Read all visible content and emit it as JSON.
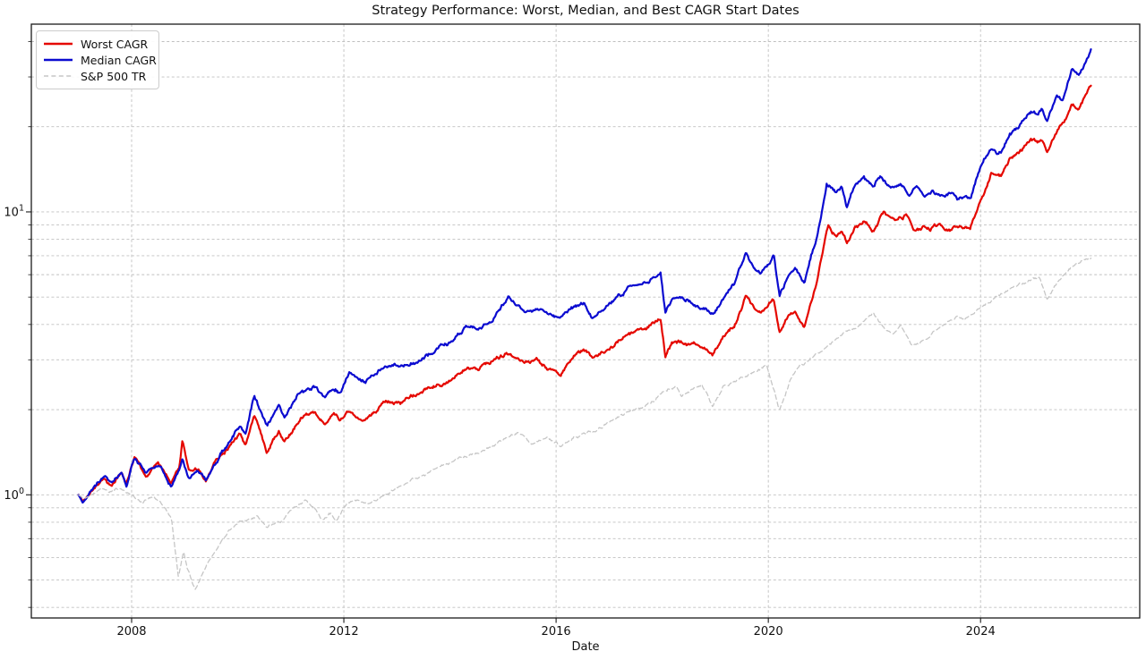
{
  "title": "Strategy Performance: Worst, Median, and Best CAGR Start Dates",
  "chart_data": {
    "type": "line",
    "title": "Strategy Performance: Worst, Median, and Best CAGR Start Dates",
    "xlabel": "Date",
    "ylabel": "",
    "yscale": "log",
    "grid": true,
    "legend_position": "upper-left",
    "x_range": [
      2006.11,
      2027.0
    ],
    "y_range": [
      0.367,
      46.1
    ],
    "x_data_range": [
      2007.0,
      2026.08
    ],
    "x_ticks": [
      2008,
      2012,
      2016,
      2020,
      2024
    ],
    "x_tick_labels": [
      "2008",
      "2012",
      "2016",
      "2020",
      "2024"
    ],
    "y_major_ticks": [
      1,
      10
    ],
    "y_major_tick_exponents": [
      0,
      1
    ],
    "y_minor_ticks": [
      0.4,
      0.5,
      0.6,
      0.7,
      0.8,
      0.9,
      2,
      3,
      4,
      5,
      6,
      7,
      8,
      9,
      20,
      30,
      40
    ],
    "colors": {
      "grid": "#c0c0c0",
      "spine": "#1a1a1a",
      "text": "#111111"
    },
    "series": [
      {
        "name": "Worst CAGR",
        "color": "#e50800",
        "style": "solid",
        "line_width": 2.2,
        "anchors": [
          [
            2007.0,
            1.0
          ],
          [
            2007.08,
            0.95
          ],
          [
            2007.3,
            1.08
          ],
          [
            2007.5,
            1.16
          ],
          [
            2007.62,
            1.07
          ],
          [
            2007.81,
            1.21
          ],
          [
            2007.9,
            1.11
          ],
          [
            2008.05,
            1.36
          ],
          [
            2008.27,
            1.18
          ],
          [
            2008.5,
            1.29
          ],
          [
            2008.74,
            1.11
          ],
          [
            2008.9,
            1.25
          ],
          [
            2008.96,
            1.57
          ],
          [
            2009.08,
            1.21
          ],
          [
            2009.25,
            1.23
          ],
          [
            2009.4,
            1.12
          ],
          [
            2009.55,
            1.32
          ],
          [
            2009.8,
            1.47
          ],
          [
            2010.04,
            1.64
          ],
          [
            2010.15,
            1.51
          ],
          [
            2010.31,
            1.95
          ],
          [
            2010.55,
            1.44
          ],
          [
            2010.77,
            1.7
          ],
          [
            2010.88,
            1.56
          ],
          [
            2011.19,
            1.9
          ],
          [
            2011.45,
            1.96
          ],
          [
            2011.64,
            1.79
          ],
          [
            2011.8,
            1.92
          ],
          [
            2011.92,
            1.83
          ],
          [
            2012.1,
            1.98
          ],
          [
            2012.4,
            1.84
          ],
          [
            2012.75,
            2.06
          ],
          [
            2013.1,
            2.12
          ],
          [
            2013.35,
            2.24
          ],
          [
            2013.8,
            2.46
          ],
          [
            2014.1,
            2.63
          ],
          [
            2014.3,
            2.79
          ],
          [
            2014.55,
            2.76
          ],
          [
            2014.8,
            2.98
          ],
          [
            2015.1,
            3.16
          ],
          [
            2015.4,
            2.95
          ],
          [
            2015.62,
            3.05
          ],
          [
            2015.85,
            2.78
          ],
          [
            2016.08,
            2.6
          ],
          [
            2016.35,
            3.06
          ],
          [
            2016.52,
            3.2
          ],
          [
            2016.68,
            3.0
          ],
          [
            2016.95,
            3.27
          ],
          [
            2017.35,
            3.72
          ],
          [
            2017.7,
            3.95
          ],
          [
            2017.97,
            4.17
          ],
          [
            2018.06,
            3.12
          ],
          [
            2018.18,
            3.48
          ],
          [
            2018.35,
            3.5
          ],
          [
            2018.55,
            3.38
          ],
          [
            2018.75,
            3.3
          ],
          [
            2018.95,
            3.08
          ],
          [
            2019.15,
            3.6
          ],
          [
            2019.36,
            3.93
          ],
          [
            2019.58,
            5.05
          ],
          [
            2019.72,
            4.5
          ],
          [
            2019.85,
            4.3
          ],
          [
            2020.0,
            4.58
          ],
          [
            2020.1,
            4.9
          ],
          [
            2020.21,
            3.66
          ],
          [
            2020.38,
            4.25
          ],
          [
            2020.5,
            4.48
          ],
          [
            2020.68,
            3.93
          ],
          [
            2020.8,
            4.8
          ],
          [
            2020.9,
            5.5
          ],
          [
            2021.0,
            6.9
          ],
          [
            2021.13,
            9.1
          ],
          [
            2021.28,
            8.3
          ],
          [
            2021.38,
            8.8
          ],
          [
            2021.48,
            7.9
          ],
          [
            2021.62,
            8.8
          ],
          [
            2021.8,
            9.35
          ],
          [
            2021.97,
            8.6
          ],
          [
            2022.18,
            10.0
          ],
          [
            2022.42,
            9.3
          ],
          [
            2022.6,
            9.65
          ],
          [
            2022.77,
            8.6
          ],
          [
            2022.92,
            8.85
          ],
          [
            2023.05,
            8.5
          ],
          [
            2023.22,
            8.9
          ],
          [
            2023.42,
            8.55
          ],
          [
            2023.62,
            8.85
          ],
          [
            2023.8,
            8.6
          ],
          [
            2024.0,
            10.7
          ],
          [
            2024.2,
            13.6
          ],
          [
            2024.38,
            13.1
          ],
          [
            2024.55,
            15.2
          ],
          [
            2024.78,
            16.3
          ],
          [
            2024.95,
            17.9
          ],
          [
            2025.08,
            17.2
          ],
          [
            2025.17,
            17.9
          ],
          [
            2025.25,
            16.2
          ],
          [
            2025.44,
            19.5
          ],
          [
            2025.58,
            21.0
          ],
          [
            2025.72,
            24.3
          ],
          [
            2025.85,
            23.6
          ],
          [
            2026.08,
            28.6
          ]
        ]
      },
      {
        "name": "Median CAGR",
        "color": "#0b0bd0",
        "style": "solid",
        "line_width": 2.2,
        "anchors": [
          [
            2007.0,
            1.0
          ],
          [
            2007.08,
            0.94
          ],
          [
            2007.3,
            1.08
          ],
          [
            2007.5,
            1.16
          ],
          [
            2007.62,
            1.07
          ],
          [
            2007.81,
            1.21
          ],
          [
            2007.9,
            1.1
          ],
          [
            2008.05,
            1.35
          ],
          [
            2008.27,
            1.17
          ],
          [
            2008.5,
            1.28
          ],
          [
            2008.74,
            1.07
          ],
          [
            2008.9,
            1.22
          ],
          [
            2008.96,
            1.34
          ],
          [
            2009.08,
            1.16
          ],
          [
            2009.25,
            1.22
          ],
          [
            2009.4,
            1.15
          ],
          [
            2009.55,
            1.28
          ],
          [
            2009.8,
            1.5
          ],
          [
            2010.04,
            1.74
          ],
          [
            2010.15,
            1.61
          ],
          [
            2010.31,
            2.22
          ],
          [
            2010.55,
            1.74
          ],
          [
            2010.77,
            2.07
          ],
          [
            2010.88,
            1.88
          ],
          [
            2011.19,
            2.28
          ],
          [
            2011.45,
            2.42
          ],
          [
            2011.64,
            2.23
          ],
          [
            2011.8,
            2.4
          ],
          [
            2011.92,
            2.29
          ],
          [
            2012.1,
            2.73
          ],
          [
            2012.4,
            2.53
          ],
          [
            2012.75,
            2.82
          ],
          [
            2013.1,
            2.87
          ],
          [
            2013.35,
            2.95
          ],
          [
            2013.8,
            3.28
          ],
          [
            2014.1,
            3.56
          ],
          [
            2014.3,
            3.86
          ],
          [
            2014.55,
            3.8
          ],
          [
            2014.8,
            4.12
          ],
          [
            2015.1,
            5.05
          ],
          [
            2015.4,
            4.55
          ],
          [
            2015.62,
            4.7
          ],
          [
            2015.85,
            4.42
          ],
          [
            2016.08,
            4.18
          ],
          [
            2016.35,
            4.62
          ],
          [
            2016.52,
            4.83
          ],
          [
            2016.68,
            4.22
          ],
          [
            2016.95,
            4.58
          ],
          [
            2017.35,
            5.46
          ],
          [
            2017.7,
            5.76
          ],
          [
            2017.97,
            6.1
          ],
          [
            2018.06,
            4.42
          ],
          [
            2018.18,
            4.92
          ],
          [
            2018.35,
            4.95
          ],
          [
            2018.55,
            4.8
          ],
          [
            2018.75,
            4.62
          ],
          [
            2018.95,
            4.4
          ],
          [
            2019.15,
            5.05
          ],
          [
            2019.36,
            5.6
          ],
          [
            2019.58,
            7.2
          ],
          [
            2019.72,
            6.4
          ],
          [
            2019.85,
            6.12
          ],
          [
            2020.0,
            6.65
          ],
          [
            2020.1,
            7.16
          ],
          [
            2020.21,
            5.1
          ],
          [
            2020.38,
            6.05
          ],
          [
            2020.5,
            6.42
          ],
          [
            2020.68,
            5.58
          ],
          [
            2020.8,
            6.9
          ],
          [
            2020.9,
            7.9
          ],
          [
            2021.0,
            10.0
          ],
          [
            2021.1,
            12.9
          ],
          [
            2021.28,
            11.8
          ],
          [
            2021.38,
            12.5
          ],
          [
            2021.48,
            10.7
          ],
          [
            2021.62,
            12.4
          ],
          [
            2021.8,
            13.6
          ],
          [
            2021.97,
            12.2
          ],
          [
            2022.1,
            13.3
          ],
          [
            2022.3,
            12.1
          ],
          [
            2022.5,
            12.8
          ],
          [
            2022.65,
            11.7
          ],
          [
            2022.8,
            12.3
          ],
          [
            2022.95,
            11.4
          ],
          [
            2023.1,
            12.0
          ],
          [
            2023.25,
            11.5
          ],
          [
            2023.42,
            11.9
          ],
          [
            2023.58,
            11.3
          ],
          [
            2023.72,
            11.7
          ],
          [
            2023.82,
            11.5
          ],
          [
            2024.0,
            14.8
          ],
          [
            2024.2,
            16.7
          ],
          [
            2024.38,
            16.1
          ],
          [
            2024.55,
            18.8
          ],
          [
            2024.78,
            20.7
          ],
          [
            2024.95,
            22.7
          ],
          [
            2025.08,
            21.8
          ],
          [
            2025.17,
            22.6
          ],
          [
            2025.25,
            20.8
          ],
          [
            2025.44,
            25.8
          ],
          [
            2025.55,
            24.5
          ],
          [
            2025.72,
            31.3
          ],
          [
            2025.85,
            30.0
          ],
          [
            2026.08,
            37.5
          ]
        ]
      },
      {
        "name": "S&P 500 TR",
        "color": "#c6c6c6",
        "style": "dashed",
        "line_width": 1.3,
        "anchors": [
          [
            2007.0,
            1.0
          ],
          [
            2007.1,
            0.97
          ],
          [
            2007.4,
            1.04
          ],
          [
            2007.6,
            1.02
          ],
          [
            2007.8,
            1.05
          ],
          [
            2008.0,
            1.0
          ],
          [
            2008.2,
            0.93
          ],
          [
            2008.4,
            0.97
          ],
          [
            2008.6,
            0.91
          ],
          [
            2008.75,
            0.83
          ],
          [
            2008.88,
            0.52
          ],
          [
            2008.98,
            0.63
          ],
          [
            2009.05,
            0.55
          ],
          [
            2009.2,
            0.46
          ],
          [
            2009.4,
            0.57
          ],
          [
            2009.6,
            0.66
          ],
          [
            2009.85,
            0.75
          ],
          [
            2010.1,
            0.8
          ],
          [
            2010.35,
            0.83
          ],
          [
            2010.55,
            0.75
          ],
          [
            2010.8,
            0.8
          ],
          [
            2011.0,
            0.88
          ],
          [
            2011.3,
            0.95
          ],
          [
            2011.45,
            0.9
          ],
          [
            2011.6,
            0.82
          ],
          [
            2011.75,
            0.86
          ],
          [
            2011.85,
            0.8
          ],
          [
            2012.0,
            0.9
          ],
          [
            2012.2,
            0.97
          ],
          [
            2012.45,
            0.93
          ],
          [
            2012.6,
            0.96
          ],
          [
            2012.8,
            1.0
          ],
          [
            2013.0,
            1.06
          ],
          [
            2013.3,
            1.14
          ],
          [
            2013.6,
            1.21
          ],
          [
            2013.95,
            1.29
          ],
          [
            2014.3,
            1.36
          ],
          [
            2014.6,
            1.44
          ],
          [
            2014.8,
            1.49
          ],
          [
            2015.0,
            1.55
          ],
          [
            2015.3,
            1.66
          ],
          [
            2015.55,
            1.52
          ],
          [
            2015.75,
            1.6
          ],
          [
            2015.95,
            1.55
          ],
          [
            2016.1,
            1.5
          ],
          [
            2016.35,
            1.62
          ],
          [
            2016.6,
            1.66
          ],
          [
            2016.8,
            1.7
          ],
          [
            2017.0,
            1.8
          ],
          [
            2017.4,
            1.95
          ],
          [
            2017.85,
            2.18
          ],
          [
            2018.0,
            2.35
          ],
          [
            2018.27,
            2.49
          ],
          [
            2018.37,
            2.26
          ],
          [
            2018.6,
            2.4
          ],
          [
            2018.75,
            2.46
          ],
          [
            2018.95,
            2.05
          ],
          [
            2019.15,
            2.4
          ],
          [
            2019.5,
            2.6
          ],
          [
            2019.7,
            2.72
          ],
          [
            2019.97,
            2.85
          ],
          [
            2020.21,
            2.0
          ],
          [
            2020.4,
            2.55
          ],
          [
            2020.6,
            2.85
          ],
          [
            2020.9,
            3.16
          ],
          [
            2021.2,
            3.45
          ],
          [
            2021.5,
            3.85
          ],
          [
            2021.7,
            3.95
          ],
          [
            2021.97,
            4.45
          ],
          [
            2022.15,
            4.0
          ],
          [
            2022.35,
            3.72
          ],
          [
            2022.5,
            3.95
          ],
          [
            2022.7,
            3.36
          ],
          [
            2022.87,
            3.44
          ],
          [
            2023.1,
            3.75
          ],
          [
            2023.4,
            4.1
          ],
          [
            2023.55,
            4.33
          ],
          [
            2023.7,
            4.16
          ],
          [
            2024.0,
            4.66
          ],
          [
            2024.3,
            5.0
          ],
          [
            2024.6,
            5.4
          ],
          [
            2024.93,
            5.76
          ],
          [
            2025.1,
            5.9
          ],
          [
            2025.25,
            4.92
          ],
          [
            2025.45,
            5.6
          ],
          [
            2025.7,
            6.3
          ],
          [
            2025.9,
            6.6
          ],
          [
            2026.08,
            6.9
          ]
        ]
      }
    ]
  }
}
